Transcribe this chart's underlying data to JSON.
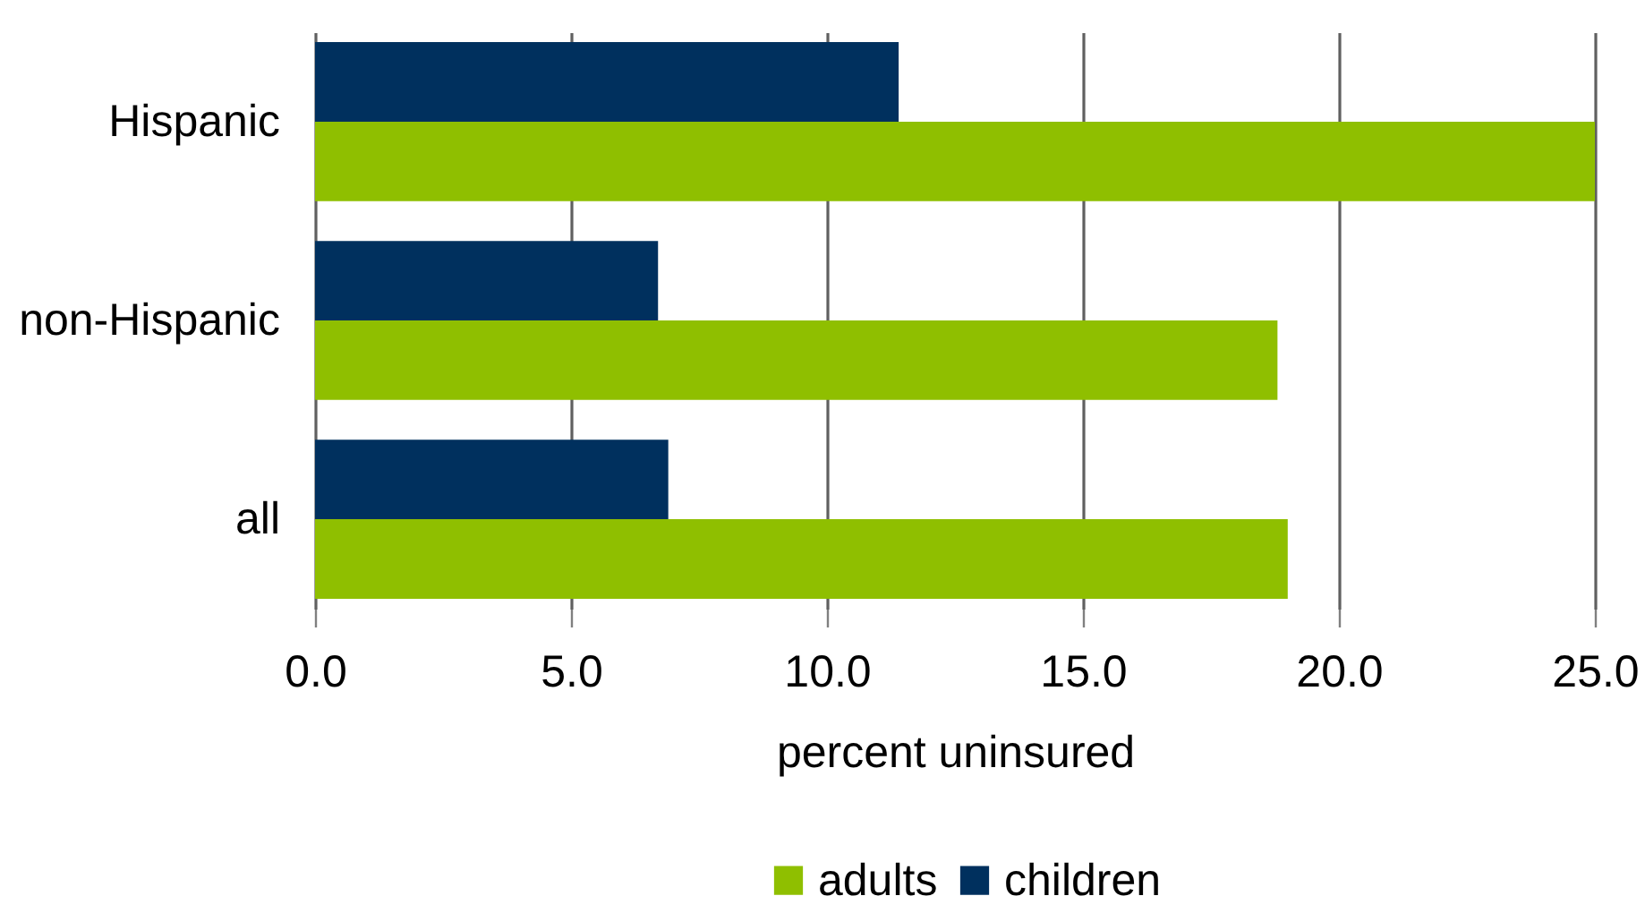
{
  "chart_data": {
    "type": "bar",
    "orientation": "horizontal",
    "categories": [
      "Hispanic",
      "non-Hispanic",
      "all"
    ],
    "series": [
      {
        "name": "adults",
        "color": "#8fbf00",
        "values": [
          25.0,
          18.8,
          19.0
        ]
      },
      {
        "name": "children",
        "color": "#00305e",
        "values": [
          11.4,
          6.7,
          6.9
        ]
      }
    ],
    "xlabel": "percent uninsured",
    "xlim": [
      0,
      25
    ],
    "xticks": [
      {
        "value": 0,
        "label": "0.0"
      },
      {
        "value": 5,
        "label": "5.0"
      },
      {
        "value": 10,
        "label": "10.0"
      },
      {
        "value": 15,
        "label": "15.0"
      },
      {
        "value": 20,
        "label": "20.0"
      },
      {
        "value": 25,
        "label": "25.0"
      }
    ],
    "grid": "x",
    "legend": "bottom"
  }
}
